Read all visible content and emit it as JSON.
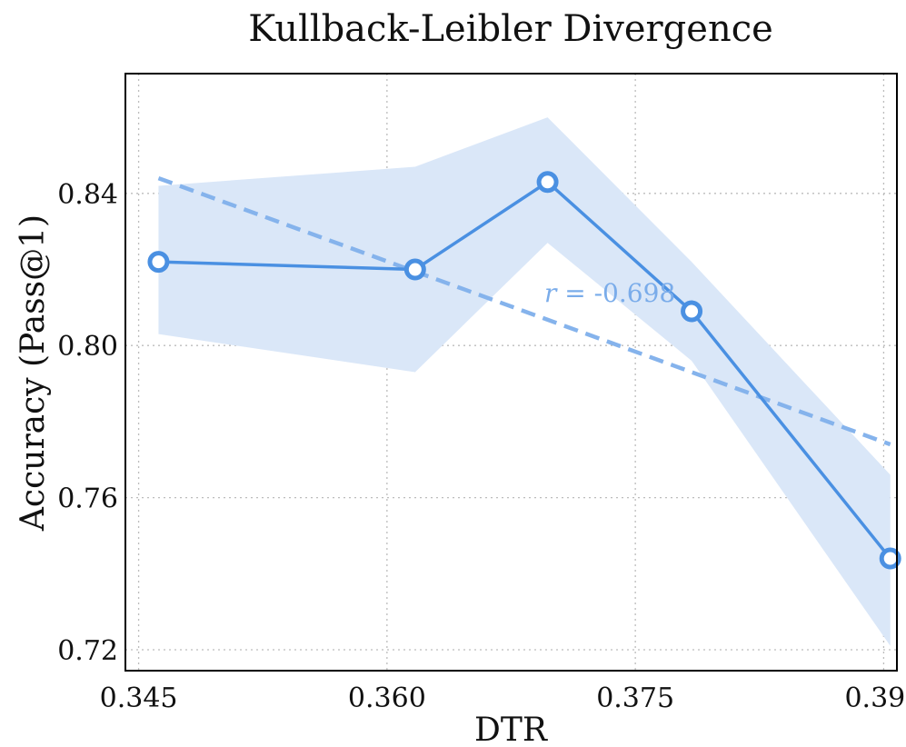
{
  "chart_data": {
    "type": "line",
    "title": "Kullback-Leibler Divergence",
    "xlabel": "DTR",
    "ylabel": "Accuracy (Pass@1)",
    "xlim": [
      0.3442,
      0.3908
    ],
    "ylim": [
      0.7145,
      0.8715
    ],
    "xticks": [
      0.345,
      0.36,
      0.375,
      0.39
    ],
    "xtick_labels": [
      "0.345",
      "0.360",
      "0.375",
      "0.390"
    ],
    "yticks": [
      0.72,
      0.76,
      0.8,
      0.84
    ],
    "ytick_labels": [
      "0.72",
      "0.76",
      "0.80",
      "0.84"
    ],
    "grid": true,
    "series": [
      {
        "name": "Accuracy",
        "color": "#4a90e2",
        "x": [
          0.3462,
          0.3617,
          0.3697,
          0.3784,
          0.3904
        ],
        "y": [
          0.822,
          0.82,
          0.843,
          0.809,
          0.744
        ],
        "band_lower": [
          0.803,
          0.793,
          0.827,
          0.796,
          0.721
        ],
        "band_upper": [
          0.842,
          0.847,
          0.86,
          0.822,
          0.766
        ]
      }
    ],
    "trendline": {
      "x": [
        0.3462,
        0.3904
      ],
      "y": [
        0.844,
        0.774
      ],
      "style": "dashed"
    },
    "annotation": {
      "var": "r",
      "text": " = -0.698",
      "x": 0.3695,
      "y": 0.8115
    },
    "colors": {
      "line": "#4a90e2",
      "band": "#dae7f8",
      "trend": "#85b3ec",
      "annotation": "#7aacea"
    }
  }
}
